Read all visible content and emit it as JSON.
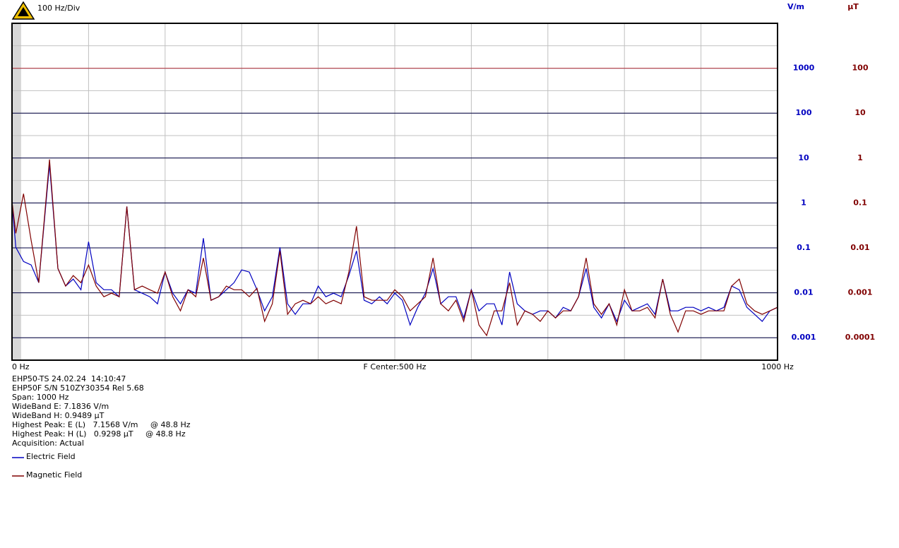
{
  "chart_data": {
    "type": "line",
    "title": "100 Hz/Div",
    "y_label": "V/m",
    "y2_label": "µT",
    "log_y": true,
    "grid": true,
    "x": [
      0,
      5,
      15,
      25,
      35,
      49,
      60,
      70,
      80,
      90,
      100,
      110,
      120,
      130,
      140,
      150,
      160,
      170,
      180,
      190,
      200,
      210,
      220,
      230,
      240,
      250,
      260,
      270,
      280,
      290,
      300,
      310,
      320,
      330,
      340,
      350,
      360,
      370,
      380,
      390,
      400,
      410,
      420,
      430,
      440,
      450,
      460,
      470,
      480,
      490,
      500,
      510,
      520,
      530,
      540,
      550,
      560,
      570,
      580,
      590,
      600,
      610,
      620,
      630,
      640,
      650,
      660,
      670,
      680,
      690,
      700,
      710,
      720,
      730,
      740,
      750,
      760,
      770,
      780,
      790,
      800,
      810,
      820,
      830,
      840,
      850,
      860,
      870,
      880,
      890,
      900,
      910,
      920,
      930,
      940,
      950,
      960,
      970,
      980,
      990,
      1000
    ],
    "xlim": [
      0,
      1000
    ],
    "xticks": [
      {
        "value": 0,
        "label": "0 Hz"
      },
      {
        "value": 500,
        "label": "F Center:500 Hz"
      },
      {
        "value": 1000,
        "label": "1000 Hz"
      }
    ],
    "ylim": [
      0.0003162,
      10000
    ],
    "yticks": [
      1000,
      100,
      10,
      1,
      0.1,
      0.01,
      0.001
    ],
    "y2lim": [
      3.162e-05,
      1000
    ],
    "y2ticks": [
      100,
      10,
      1,
      0.1,
      0.01,
      0.001,
      0.0001
    ],
    "ref_line": {
      "value": 1000,
      "color": "#d05050"
    },
    "series": [
      {
        "name": "Electric Field",
        "color": "#0000c0",
        "axis": "y",
        "values": [
          1.07,
          0.103,
          0.0498,
          0.0416,
          0.0168,
          7.16,
          0.0347,
          0.0141,
          0.0202,
          0.0117,
          0.137,
          0.0168,
          0.0117,
          0.0117,
          0.00817,
          0.835,
          0.0117,
          0.0098,
          0.00817,
          0.00569,
          0.029,
          0.0098,
          0.00569,
          0.0117,
          0.0098,
          0.164,
          0.00682,
          0.00817,
          0.0117,
          0.0168,
          0.0323,
          0.029,
          0.0117,
          0.00396,
          0.00817,
          0.103,
          0.00569,
          0.00331,
          0.00569,
          0.00569,
          0.0141,
          0.00817,
          0.0098,
          0.00817,
          0.0242,
          0.0855,
          0.00682,
          0.00569,
          0.00817,
          0.00569,
          0.0098,
          0.00682,
          0.00192,
          0.00475,
          0.0098,
          0.0347,
          0.00569,
          0.00817,
          0.00817,
          0.00276,
          0.0117,
          0.00396,
          0.00569,
          0.00569,
          0.00192,
          0.029,
          0.00569,
          0.00396,
          0.00331,
          0.00396,
          0.00396,
          0.00276,
          0.00475,
          0.00396,
          0.00817,
          0.0347,
          0.00475,
          0.00276,
          0.00569,
          0.00231,
          0.00682,
          0.00396,
          0.00475,
          0.00569,
          0.00331,
          0.0202,
          0.00396,
          0.00396,
          0.00475,
          0.00475,
          0.00396,
          0.00475,
          0.00396,
          0.00475,
          0.0141,
          0.0117,
          0.00475,
          0.00331,
          0.00231,
          0.00396,
          0.00475
        ]
      },
      {
        "name": "Magnetic Field",
        "color": "#800000",
        "axis": "y2",
        "values": [
          0.107,
          0.0211,
          0.16,
          0.0147,
          0.00168,
          0.93,
          0.00347,
          0.00141,
          0.00242,
          0.00168,
          0.00416,
          0.00141,
          0.000817,
          0.00098,
          0.000817,
          0.0835,
          0.00117,
          0.00141,
          0.00117,
          0.00098,
          0.0029,
          0.000817,
          0.000396,
          0.00117,
          0.000817,
          0.00597,
          0.000682,
          0.000817,
          0.00141,
          0.00117,
          0.00117,
          0.000817,
          0.00126,
          0.000231,
          0.000569,
          0.00855,
          0.000331,
          0.000569,
          0.000682,
          0.000569,
          0.000817,
          0.000569,
          0.000682,
          0.000569,
          0.0029,
          0.0303,
          0.000817,
          0.000682,
          0.000682,
          0.000682,
          0.00117,
          0.000817,
          0.000396,
          0.000569,
          0.000817,
          0.00597,
          0.000569,
          0.000396,
          0.000682,
          0.000231,
          0.00117,
          0.000192,
          0.000112,
          0.000396,
          0.000396,
          0.00168,
          0.000192,
          0.000396,
          0.000331,
          0.000231,
          0.000396,
          0.000276,
          0.000396,
          0.000396,
          0.000817,
          0.00597,
          0.000569,
          0.000331,
          0.000569,
          0.000192,
          0.00117,
          0.000396,
          0.000396,
          0.000475,
          0.000276,
          0.00202,
          0.000331,
          0.000134,
          0.000396,
          0.000396,
          0.000331,
          0.000396,
          0.000396,
          0.000396,
          0.00141,
          0.00202,
          0.000569,
          0.000396,
          0.000331,
          0.000396,
          0.000475
        ]
      }
    ],
    "info": [
      "EHP50-TS 24.02.24  14:10:47",
      "EHP50F S/N 510ZY30354 Rel 5.68",
      "Span: 1000 Hz",
      "WideBand E: 7.1836 V/m",
      "WideBand H: 0.9489 µT",
      "Highest Peak: E (L)   7.1568 V/m     @ 48.8 Hz",
      "Highest Peak: H (L)   0.9298 µT     @ 48.8 Hz",
      "Acquisition: Actual"
    ]
  }
}
